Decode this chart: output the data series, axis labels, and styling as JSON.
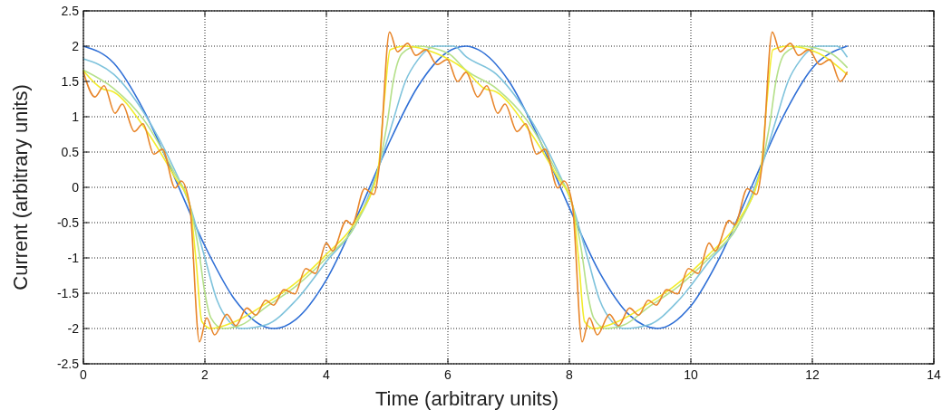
{
  "chart_data": {
    "type": "line",
    "xlabel": "Time (arbitrary units)",
    "ylabel": "Current (arbitrary units)",
    "xlim": [
      0,
      14
    ],
    "xticks": [
      0,
      2,
      4,
      6,
      8,
      10,
      12,
      14
    ],
    "ylim": [
      -2.5,
      2.5
    ],
    "yticks": [
      -2.5,
      -2,
      -1.5,
      -1,
      -0.5,
      0,
      0.5,
      1,
      1.5,
      2,
      2.5
    ],
    "grid": true,
    "marker": "none",
    "line_style": "solid",
    "series": [
      {
        "color": "#2f6fd6",
        "x": [
          0,
          0.5,
          1,
          1.5,
          2,
          2.5,
          3,
          3.15,
          3.5,
          4,
          4.5,
          5,
          5.5,
          6,
          6.3,
          6.5,
          7,
          7.5,
          8,
          8.5,
          9,
          9.45,
          10,
          10.5,
          11,
          11.5,
          12,
          12.57
        ],
        "values": [
          2,
          1.76,
          1.08,
          0.14,
          -0.83,
          -1.6,
          -1.98,
          -2,
          -1.87,
          -1.31,
          -0.42,
          0.57,
          1.42,
          1.92,
          2,
          1.95,
          1.51,
          0.69,
          -0.29,
          -1.21,
          -1.82,
          -2,
          -1.68,
          -0.95,
          0.01,
          0.97,
          1.69,
          2
        ]
      },
      {
        "color": "#7fc3dc",
        "x": [
          0,
          0.5,
          1,
          1.5,
          1.75,
          2,
          2.2,
          2.4,
          2.6,
          3,
          3.5,
          4,
          4.5,
          4.85,
          5.1,
          5.3,
          5.5,
          5.8,
          6.1,
          6.3,
          6.8,
          7.3,
          7.8,
          8.05,
          8.3,
          8.5,
          8.7,
          8.9,
          9.3,
          9.8,
          10.3,
          10.8,
          11.15,
          11.4,
          11.6,
          11.8,
          12.1,
          12.4,
          12.57
        ],
        "values": [
          1.82,
          1.6,
          1.05,
          0.25,
          -0.25,
          -1,
          -1.6,
          -1.9,
          -2,
          -1.95,
          -1.6,
          -1.05,
          -0.5,
          0.25,
          0.95,
          1.5,
          1.8,
          2,
          2,
          1.85,
          1.6,
          1.05,
          0.25,
          -0.25,
          -1,
          -1.6,
          -1.9,
          -2,
          -1.95,
          -1.6,
          -1.05,
          -0.5,
          0.25,
          0.95,
          1.5,
          1.8,
          2,
          2,
          1.85
        ]
      },
      {
        "color": "#b5e08a",
        "x": [
          0,
          0.5,
          1,
          1.5,
          1.75,
          1.9,
          2,
          2.1,
          2.3,
          2.6,
          3,
          3.5,
          4,
          4.5,
          4.85,
          5,
          5.1,
          5.25,
          5.5,
          6,
          6.3,
          6.8,
          7.3,
          7.8,
          8.05,
          8.2,
          8.3,
          8.4,
          8.6,
          8.9,
          9.3,
          9.8,
          10.3,
          10.8,
          11.15,
          11.3,
          11.4,
          11.55,
          11.8,
          12.3,
          12.57
        ],
        "values": [
          1.66,
          1.4,
          0.95,
          0.2,
          -0.25,
          -0.9,
          -1.5,
          -1.85,
          -2,
          -1.95,
          -1.7,
          -1.4,
          -1,
          -0.5,
          0.25,
          0.9,
          1.5,
          1.9,
          2,
          1.9,
          1.66,
          1.4,
          0.95,
          0.2,
          -0.25,
          -0.9,
          -1.5,
          -1.85,
          -2,
          -1.95,
          -1.7,
          -1.4,
          -1,
          -0.5,
          0.25,
          0.9,
          1.5,
          1.9,
          2,
          1.9,
          1.7
        ]
      },
      {
        "color": "#f2ec2c",
        "x": [
          0,
          0.3,
          0.5,
          1,
          1.5,
          1.75,
          1.85,
          1.95,
          2.1,
          2.5,
          3,
          3.5,
          4,
          4.5,
          4.85,
          4.95,
          5.05,
          5.3,
          5.8,
          6.3,
          6.6,
          6.8,
          7.3,
          7.8,
          8.05,
          8.15,
          8.25,
          8.4,
          8.8,
          9.3,
          9.8,
          10.3,
          10.8,
          11.15,
          11.25,
          11.35,
          11.6,
          12.1,
          12.57
        ],
        "values": [
          1.65,
          1.4,
          1.35,
          0.85,
          0.15,
          -0.25,
          -1,
          -1.9,
          -2,
          -1.9,
          -1.65,
          -1.35,
          -0.95,
          -0.45,
          0.25,
          1.2,
          1.95,
          2,
          1.9,
          1.65,
          1.4,
          1.35,
          0.85,
          0.15,
          -0.25,
          -1,
          -1.9,
          -2,
          -1.9,
          -1.65,
          -1.35,
          -0.95,
          -0.45,
          0.25,
          1.2,
          1.95,
          2,
          1.9,
          1.6
        ]
      },
      {
        "color": "#e8852a",
        "x": [
          0,
          0.19,
          0.34,
          0.52,
          0.64,
          0.84,
          0.98,
          1.16,
          1.3,
          1.51,
          1.61,
          1.75,
          1.91,
          2.03,
          2.16,
          2.36,
          2.51,
          2.69,
          2.84,
          3,
          3.13,
          3.3,
          3.48,
          3.66,
          3.82,
          4,
          4.1,
          4.33,
          4.42,
          4.63,
          4.78,
          4.87,
          5.04,
          5.17,
          5.34,
          5.47,
          5.64,
          5.82,
          5.99,
          6.16,
          6.3,
          6.49,
          6.64,
          6.82,
          6.94,
          7.14,
          7.28,
          7.46,
          7.6,
          7.81,
          7.91,
          8.05,
          8.21,
          8.33,
          8.46,
          8.66,
          8.81,
          8.99,
          9.14,
          9.3,
          9.43,
          9.6,
          9.78,
          9.96,
          10.12,
          10.3,
          10.4,
          10.63,
          10.72,
          10.93,
          11.08,
          11.17,
          11.34,
          11.47,
          11.64,
          11.77,
          11.94,
          12.12,
          12.29,
          12.46,
          12.57
        ],
        "values": [
          1.63,
          1.28,
          1.44,
          1.05,
          1.18,
          0.79,
          0.9,
          0.47,
          0.54,
          -0.01,
          0.09,
          -0.25,
          -2.19,
          -1.85,
          -2.09,
          -1.8,
          -1.96,
          -1.71,
          -1.81,
          -1.6,
          -1.67,
          -1.45,
          -1.51,
          -1.15,
          -1.22,
          -0.79,
          -0.9,
          -0.47,
          -0.53,
          -0.02,
          -0.1,
          0.3,
          2.2,
          1.92,
          2.04,
          1.87,
          1.95,
          1.74,
          1.81,
          1.5,
          1.63,
          1.28,
          1.44,
          1.05,
          1.18,
          0.79,
          0.9,
          0.47,
          0.54,
          -0.01,
          0.09,
          -0.25,
          -2.19,
          -1.85,
          -2.09,
          -1.8,
          -1.96,
          -1.71,
          -1.81,
          -1.6,
          -1.67,
          -1.45,
          -1.51,
          -1.15,
          -1.22,
          -0.79,
          -0.9,
          -0.47,
          -0.53,
          -0.02,
          -0.1,
          0.3,
          2.2,
          1.92,
          2.04,
          1.87,
          1.95,
          1.74,
          1.81,
          1.5,
          1.63
        ]
      }
    ]
  }
}
